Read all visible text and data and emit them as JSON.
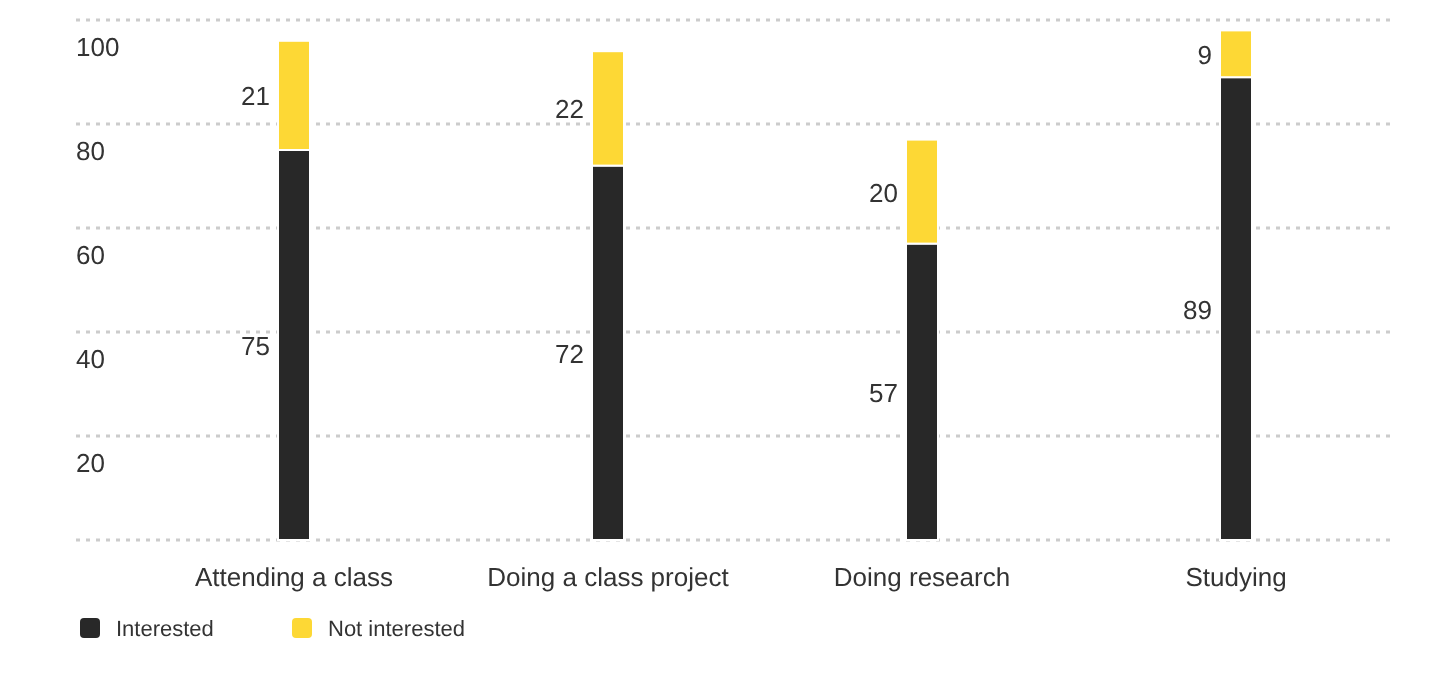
{
  "chart_data": {
    "type": "bar",
    "stacked": true,
    "categories": [
      "Attending a class",
      "Doing a class project",
      "Doing research",
      "Studying"
    ],
    "series": [
      {
        "name": "Interested",
        "color": "#282828",
        "values": [
          75,
          72,
          57,
          89
        ]
      },
      {
        "name": "Not interested",
        "color": "#fdd835",
        "values": [
          21,
          22,
          20,
          9
        ]
      }
    ],
    "ylim": [
      0,
      100
    ],
    "yticks": [
      {
        "value": 0,
        "label": null
      },
      20,
      40,
      60,
      80,
      100
    ],
    "grid": "y",
    "legend": "bottom left",
    "data_labels": true
  }
}
